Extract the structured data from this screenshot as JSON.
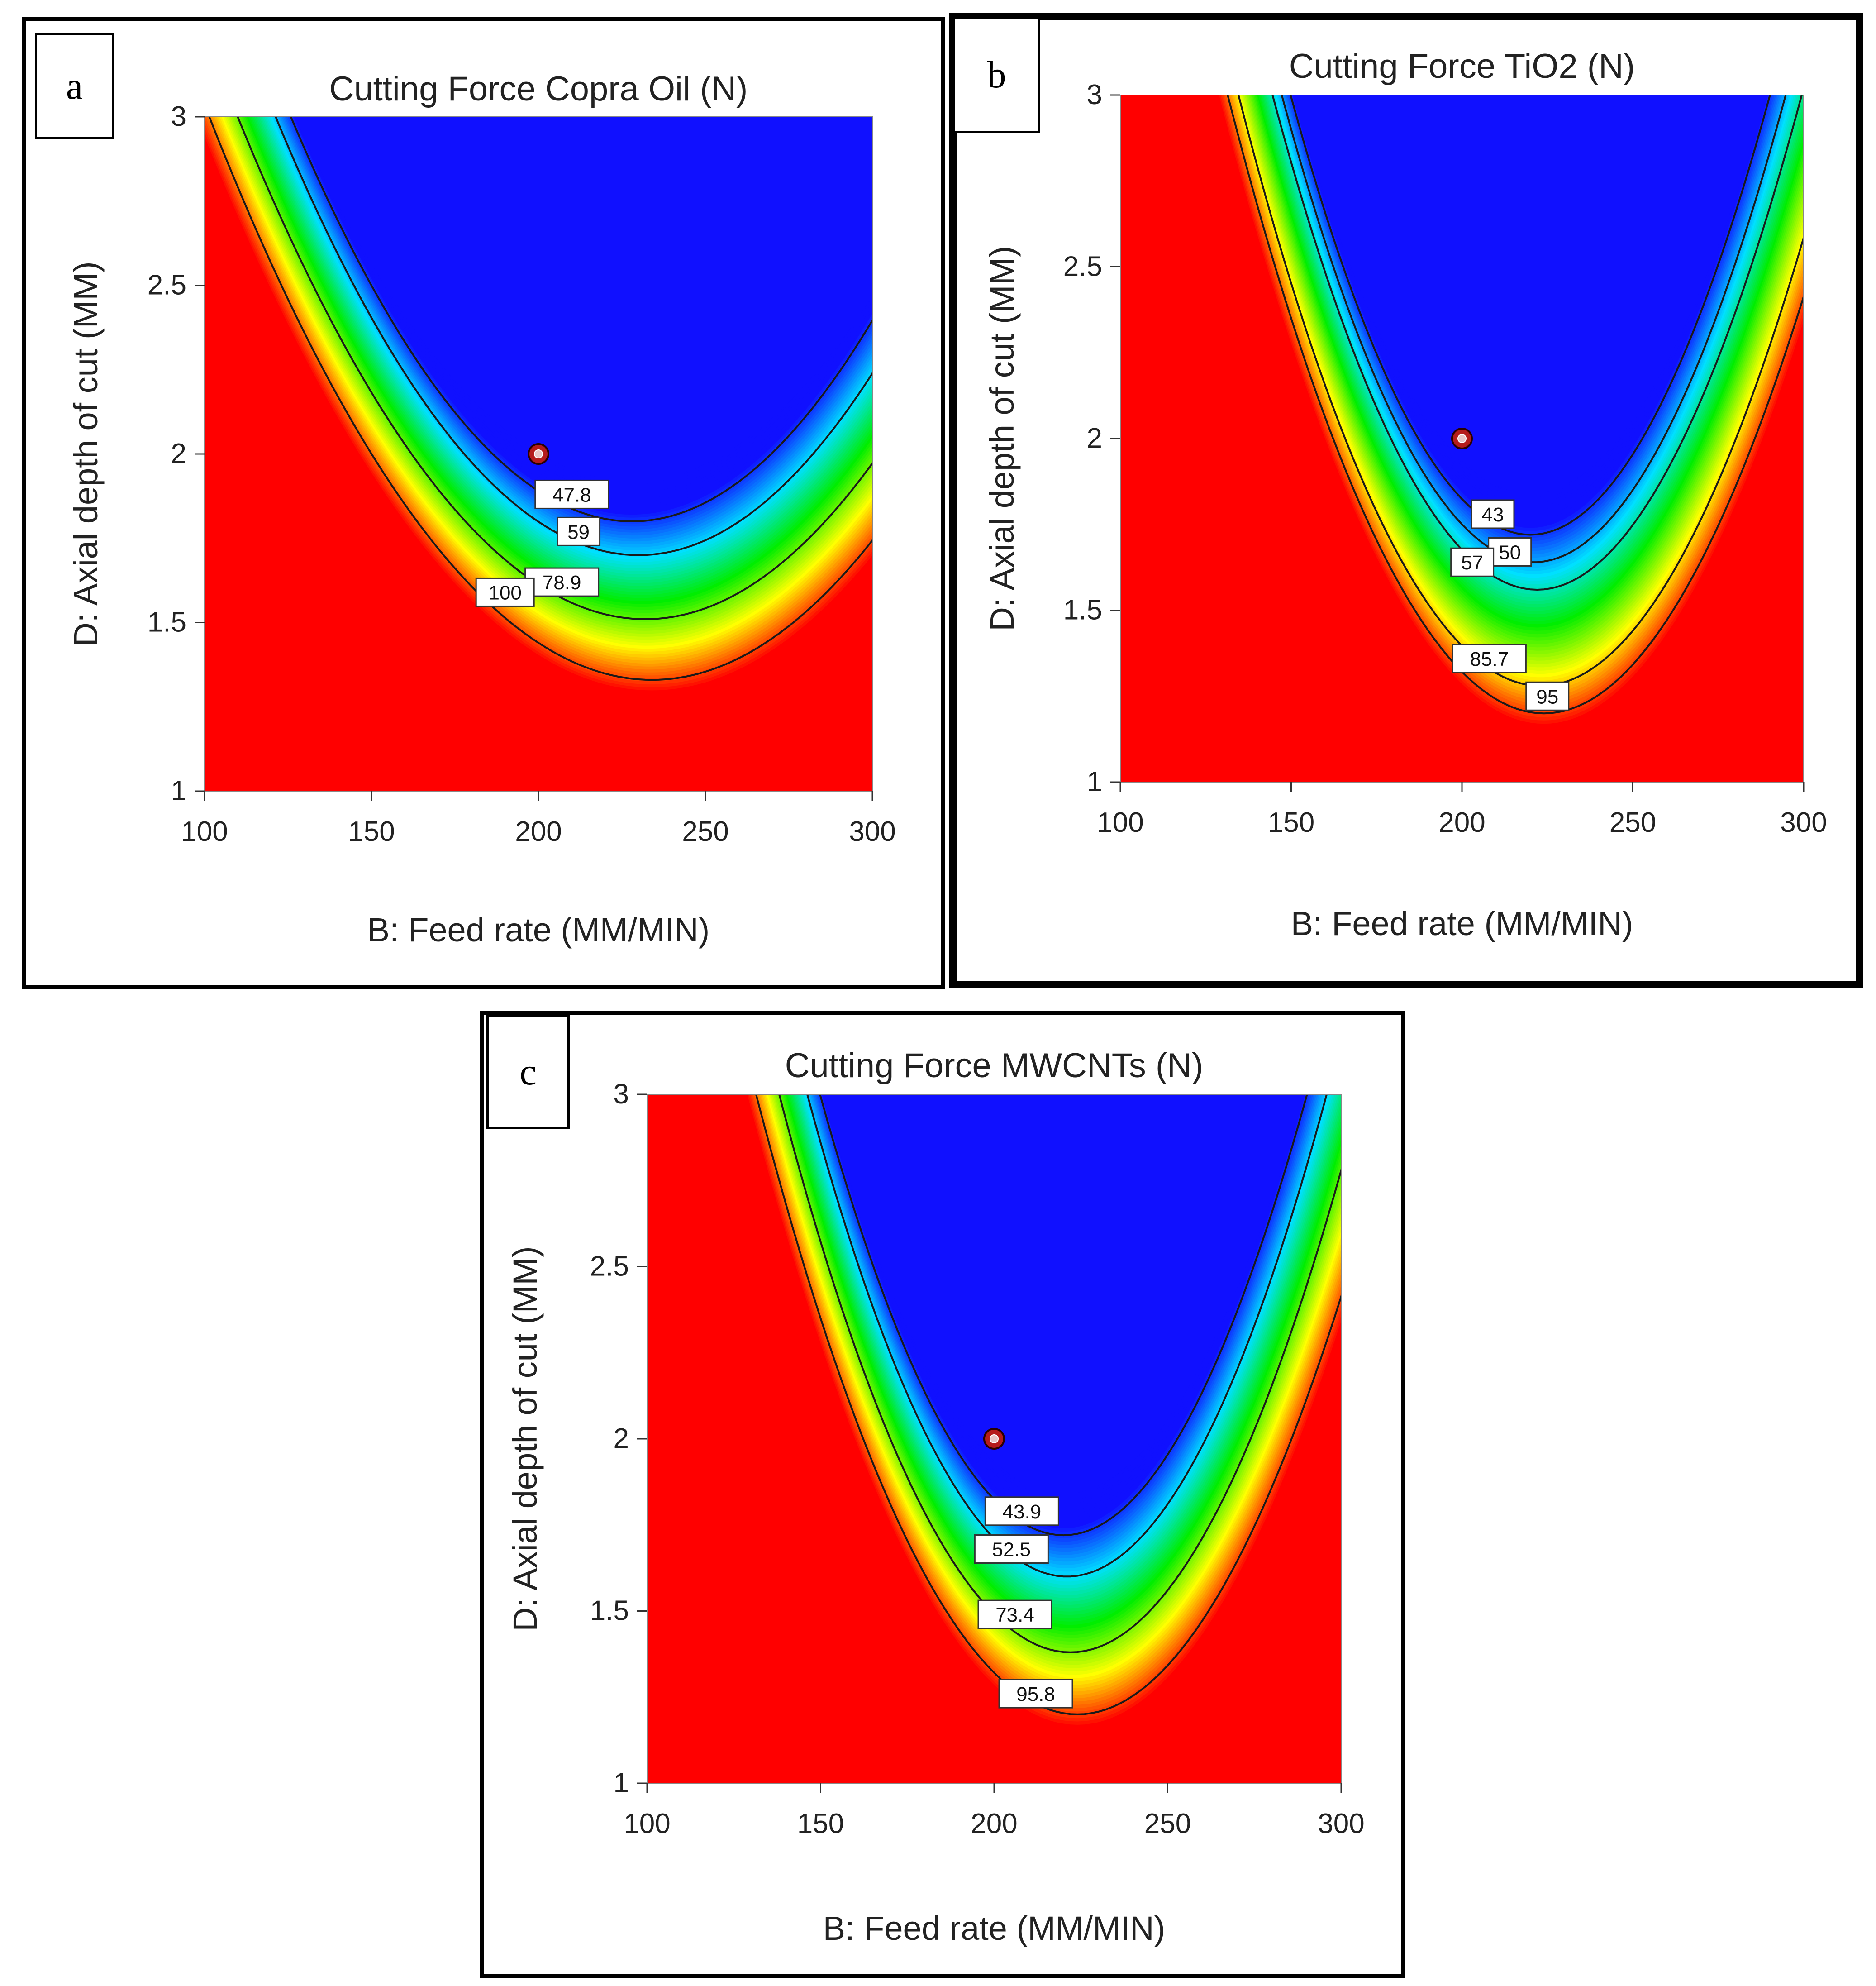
{
  "chart_data": [
    {
      "panel": "a",
      "type": "heatmap",
      "title": "Cutting Force Copra Oil  (N)",
      "xlabel": "B: Feed rate (MM/MIN)",
      "ylabel": "D: Axial depth of cut (MM)",
      "xlim": [
        100,
        300
      ],
      "ylim": [
        1,
        3
      ],
      "x_ticks": [
        "100",
        "150",
        "200",
        "250",
        "300"
      ],
      "y_ticks": [
        "1",
        "1.5",
        "2",
        "2.5",
        "3"
      ],
      "colormap": [
        "#1010ff",
        "#00e0ff",
        "#00ee00",
        "#ffff00",
        "#ff0000"
      ],
      "design_point": {
        "x": 200,
        "y": 2
      },
      "contours": [
        {
          "label": "47.8",
          "vertex_x": 228,
          "vertex_y": 1.8,
          "k": 0.000115,
          "label_x": 210,
          "label_y": 1.88
        },
        {
          "label": "59",
          "vertex_x": 230,
          "vertex_y": 1.7,
          "k": 0.00011,
          "label_x": 212,
          "label_y": 1.77
        },
        {
          "label": "78.9",
          "vertex_x": 232,
          "vertex_y": 1.51,
          "k": 0.0001,
          "label_x": 207,
          "label_y": 1.62
        },
        {
          "label": "100",
          "vertex_x": 234,
          "vertex_y": 1.33,
          "k": 9.5e-05,
          "label_x": 190,
          "label_y": 1.59
        }
      ]
    },
    {
      "panel": "b",
      "type": "heatmap",
      "title": "Cutting Force TiO2  (N)",
      "xlabel": "B: Feed rate (MM/MIN)",
      "ylabel": "D: Axial depth of cut (MM)",
      "xlim": [
        100,
        300
      ],
      "ylim": [
        1,
        3
      ],
      "x_ticks": [
        "100",
        "150",
        "200",
        "250",
        "300"
      ],
      "y_ticks": [
        "1",
        "1.5",
        "2",
        "2.5",
        "3"
      ],
      "colormap": [
        "#1010ff",
        "#00e0ff",
        "#00ee00",
        "#ffff00",
        "#ff0000"
      ],
      "design_point": {
        "x": 200,
        "y": 2
      },
      "contours": [
        {
          "label": "43",
          "vertex_x": 220,
          "vertex_y": 1.72,
          "k": 0.00026,
          "label_x": 209,
          "label_y": 1.78
        },
        {
          "label": "50",
          "vertex_x": 221,
          "vertex_y": 1.64,
          "k": 0.00025,
          "label_x": 214,
          "label_y": 1.67
        },
        {
          "label": "57",
          "vertex_x": 222,
          "vertex_y": 1.56,
          "k": 0.00024,
          "label_x": 203,
          "label_y": 1.64
        },
        {
          "label": "85.7",
          "vertex_x": 223,
          "vertex_y": 1.28,
          "k": 0.00022,
          "label_x": 208,
          "label_y": 1.36
        },
        {
          "label": "95",
          "vertex_x": 224,
          "vertex_y": 1.2,
          "k": 0.00021,
          "label_x": 225,
          "label_y": 1.25
        }
      ]
    },
    {
      "panel": "c",
      "type": "heatmap",
      "title": "Cutting Force MWCNTs  (N)",
      "xlabel": "B: Feed rate (MM/MIN)",
      "ylabel": "D: Axial depth of cut (MM)",
      "xlim": [
        100,
        300
      ],
      "ylim": [
        1,
        3
      ],
      "x_ticks": [
        "100",
        "150",
        "200",
        "250",
        "300"
      ],
      "y_ticks": [
        "1",
        "1.5",
        "2",
        "2.5",
        "3"
      ],
      "colormap": [
        "#1010ff",
        "#00e0ff",
        "#00ee00",
        "#ffff00",
        "#ff0000"
      ],
      "design_point": {
        "x": 200,
        "y": 2
      },
      "contours": [
        {
          "label": "43.9",
          "vertex_x": 220,
          "vertex_y": 1.72,
          "k": 0.00026,
          "label_x": 208,
          "label_y": 1.79
        },
        {
          "label": "52.5",
          "vertex_x": 221,
          "vertex_y": 1.6,
          "k": 0.00025,
          "label_x": 205,
          "label_y": 1.68
        },
        {
          "label": "73.4",
          "vertex_x": 222,
          "vertex_y": 1.38,
          "k": 0.00023,
          "label_x": 206,
          "label_y": 1.49
        },
        {
          "label": "95.8",
          "vertex_x": 224,
          "vertex_y": 1.2,
          "k": 0.00021,
          "label_x": 212,
          "label_y": 1.26
        }
      ]
    }
  ]
}
